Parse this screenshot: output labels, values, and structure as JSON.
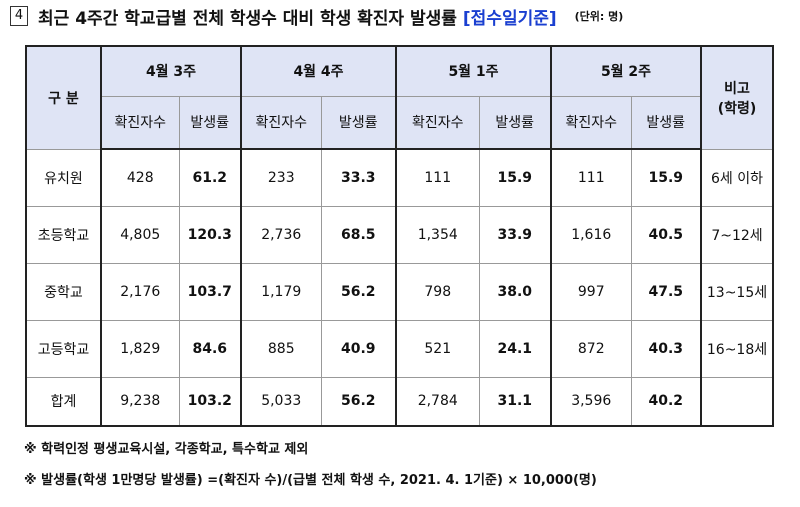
{
  "title": {
    "number": "4",
    "text": "최근 4주간 학교급별 전체 학생수 대비 학생 확진자 발생률",
    "basis": "[접수일기준]",
    "unit": "(단위: 명)"
  },
  "table": {
    "corner": "구 분",
    "weeks": [
      "4월 3주",
      "4월 4주",
      "5월 1주",
      "5월 2주"
    ],
    "note_header": [
      "비고",
      "(학령)"
    ],
    "subheaders": [
      "확진자수",
      "발생률"
    ],
    "rows": [
      {
        "label": "유치원",
        "cells": [
          "428",
          "61.2",
          "233",
          "33.3",
          "111",
          "15.9",
          "111",
          "15.9"
        ],
        "note": "6세 이하"
      },
      {
        "label": "초등학교",
        "cells": [
          "4,805",
          "120.3",
          "2,736",
          "68.5",
          "1,354",
          "33.9",
          "1,616",
          "40.5"
        ],
        "note": "7~12세"
      },
      {
        "label": "중학교",
        "cells": [
          "2,176",
          "103.7",
          "1,179",
          "56.2",
          "798",
          "38.0",
          "997",
          "47.5"
        ],
        "note": "13~15세"
      },
      {
        "label": "고등학교",
        "cells": [
          "1,829",
          "84.6",
          "885",
          "40.9",
          "521",
          "24.1",
          "872",
          "40.3"
        ],
        "note": "16~18세"
      },
      {
        "label": "합계",
        "cells": [
          "9,238",
          "103.2",
          "5,033",
          "56.2",
          "2,784",
          "31.1",
          "3,596",
          "40.2"
        ],
        "note": null
      }
    ]
  },
  "footnotes": [
    "※ 학력인정 평생교육시설, 각종학교, 특수학교 제외",
    "※ 발생률(학생 1만명당 발생률) =(확진자 수)/(급별 전체 학생 수, 2021. 4. 1기준) × 10,000(명)"
  ]
}
